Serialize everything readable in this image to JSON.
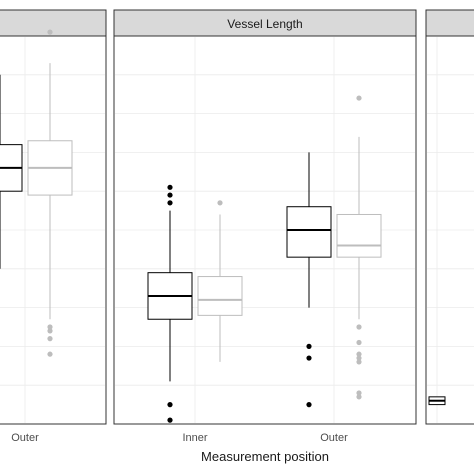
{
  "chart_data": {
    "type": "box",
    "xlabel": "Measurement position",
    "ylabel": "",
    "ylim": [
      0,
      100
    ],
    "grid": true,
    "legend": "none",
    "colors": {
      "series_a": "#000000",
      "series_b": "#bdbdbd",
      "strip_fill": "#d9d9d9",
      "grid": "#ebebeb",
      "panel_border": "#333333"
    },
    "panels": [
      {
        "strip": "",
        "categories": [
          "Outer"
        ],
        "boxes": [
          {
            "category": "Outer",
            "series": "a",
            "q1": 60,
            "median": 66,
            "q3": 72,
            "whisker_low": 40,
            "whisker_high": 90,
            "outliers": []
          },
          {
            "category": "Outer",
            "series": "b",
            "q1": 59,
            "median": 66,
            "q3": 73,
            "whisker_low": 27,
            "whisker_high": 93,
            "outliers": [
              22,
              24,
              25,
              18,
              101
            ]
          }
        ]
      },
      {
        "strip": "Vessel Length",
        "categories": [
          "Inner",
          "Outer"
        ],
        "boxes": [
          {
            "category": "Inner",
            "series": "a",
            "q1": 27,
            "median": 33,
            "q3": 39,
            "whisker_low": 11,
            "whisker_high": 55,
            "outliers": [
              57,
              59,
              61,
              5,
              1
            ]
          },
          {
            "category": "Inner",
            "series": "b",
            "q1": 28,
            "median": 32,
            "q3": 38,
            "whisker_low": 16,
            "whisker_high": 54,
            "outliers": [
              57
            ]
          },
          {
            "category": "Outer",
            "series": "a",
            "q1": 43,
            "median": 50,
            "q3": 56,
            "whisker_low": 30,
            "whisker_high": 70,
            "outliers": [
              20,
              17,
              5
            ]
          },
          {
            "category": "Outer",
            "series": "b",
            "q1": 43,
            "median": 46,
            "q3": 54,
            "whisker_low": 27,
            "whisker_high": 74,
            "outliers": [
              84,
              25,
              21,
              18,
              17,
              16,
              8,
              7
            ]
          }
        ]
      },
      {
        "strip": "",
        "categories": [],
        "boxes": [
          {
            "category": "",
            "series": "a",
            "q1": 5,
            "median": 6,
            "q3": 7,
            "whisker_low": 5,
            "whisker_high": 7,
            "outliers": []
          }
        ]
      }
    ]
  }
}
